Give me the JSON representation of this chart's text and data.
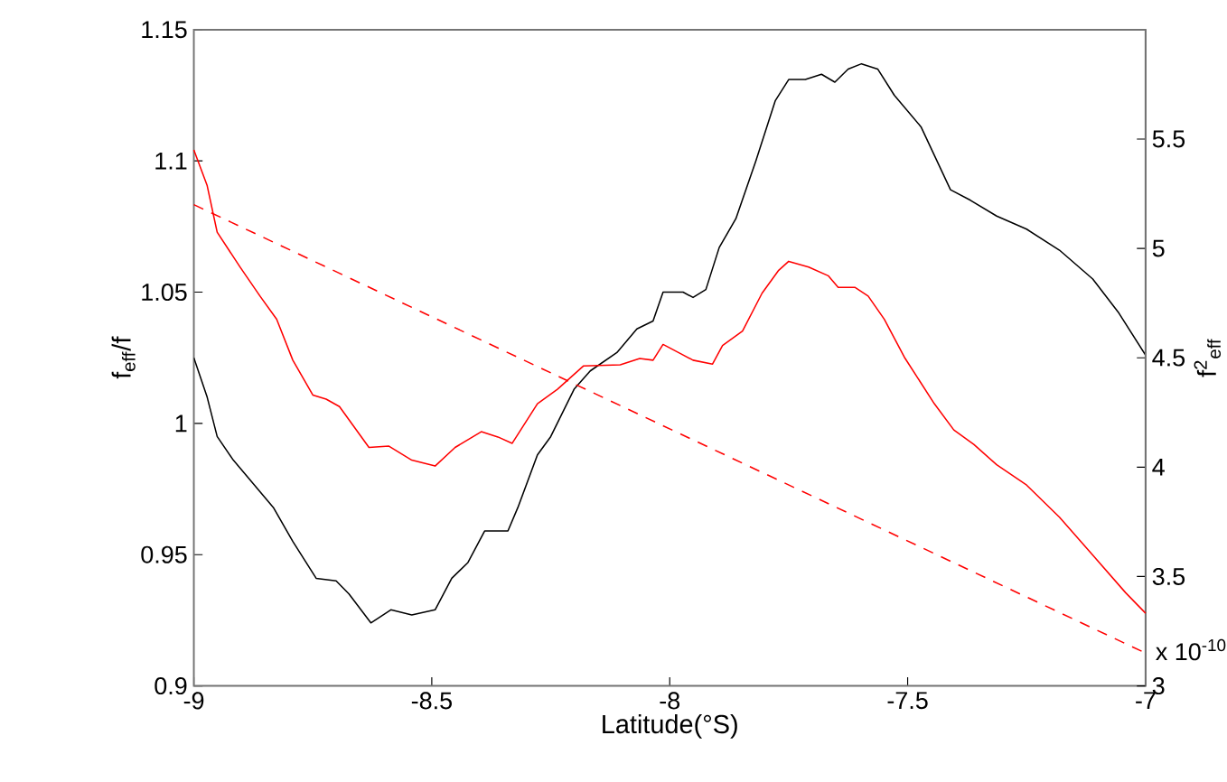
{
  "chart_data": {
    "type": "line",
    "xlabel": "Latitude(°S)",
    "ylabel": "f$_{eff}$/f",
    "y2label": "f$^{2}$$_{eff}$",
    "annotations": [
      "x 10$^{-10}$"
    ],
    "xlim": [
      -9,
      -7
    ],
    "xticks": [
      -9,
      -8.5,
      -8,
      -7.5,
      -7
    ],
    "ylim": [
      0.9,
      1.15
    ],
    "yticks": [
      0.9,
      0.95,
      1,
      1.05,
      1.1,
      1.15
    ],
    "y2lim": [
      3,
      6
    ],
    "y2ticks": [
      3,
      3.5,
      4,
      4.5,
      5,
      5.5
    ],
    "grid": false,
    "marker": "none",
    "series": [
      {
        "color": "#000000",
        "line_style": "solid",
        "x": [
          -9,
          -8.972,
          -8.951,
          -8.917,
          -8.833,
          -8.792,
          -8.743,
          -8.701,
          -8.674,
          -8.628,
          -8.586,
          -8.542,
          -8.493,
          -8.458,
          -8.424,
          -8.389,
          -8.34,
          -8.319,
          -8.278,
          -8.25,
          -8.201,
          -8.167,
          -8.111,
          -8.069,
          -8.035,
          -8.014,
          -7.972,
          -7.951,
          -7.924,
          -7.896,
          -7.861,
          -7.819,
          -7.778,
          -7.75,
          -7.715,
          -7.681,
          -7.653,
          -7.625,
          -7.597,
          -7.563,
          -7.528,
          -7.472,
          -7.41,
          -7.368,
          -7.313,
          -7.25,
          -7.181,
          -7.111,
          -7.056,
          -7
        ],
        "values": [
          1.025,
          1.01,
          0.995,
          0.986,
          0.968,
          0.955,
          0.941,
          0.94,
          0.935,
          0.924,
          0.929,
          0.927,
          0.929,
          0.941,
          0.947,
          0.959,
          0.959,
          0.968,
          0.988,
          0.995,
          1.013,
          1.02,
          1.027,
          1.036,
          1.039,
          1.05,
          1.05,
          1.048,
          1.051,
          1.067,
          1.078,
          1.1,
          1.123,
          1.131,
          1.131,
          1.133,
          1.13,
          1.135,
          1.137,
          1.135,
          1.125,
          1.113,
          1.089,
          1.085,
          1.079,
          1.074,
          1.066,
          1.055,
          1.042,
          1.026
        ]
      },
      {
        "color": "#ff0000",
        "line_style": "solid",
        "axis": "y2",
        "x": [
          -9,
          -8.972,
          -8.951,
          -8.903,
          -8.861,
          -8.826,
          -8.792,
          -8.75,
          -8.722,
          -8.694,
          -8.632,
          -8.59,
          -8.542,
          -8.493,
          -8.451,
          -8.396,
          -8.361,
          -8.331,
          -8.278,
          -8.236,
          -8.181,
          -8.104,
          -8.063,
          -8.035,
          -8.014,
          -7.979,
          -7.951,
          -7.91,
          -7.889,
          -7.847,
          -7.806,
          -7.771,
          -7.75,
          -7.708,
          -7.667,
          -7.646,
          -7.611,
          -7.583,
          -7.549,
          -7.507,
          -7.444,
          -7.403,
          -7.361,
          -7.313,
          -7.25,
          -7.181,
          -7.111,
          -7.042,
          -7
        ],
        "values": [
          5.45,
          5.287,
          5.074,
          4.915,
          4.782,
          4.676,
          4.489,
          4.33,
          4.311,
          4.277,
          4.09,
          4.096,
          4.032,
          4.005,
          4.09,
          4.162,
          4.138,
          4.109,
          4.29,
          4.356,
          4.463,
          4.468,
          4.497,
          4.489,
          4.561,
          4.521,
          4.489,
          4.471,
          4.556,
          4.622,
          4.795,
          4.9,
          4.941,
          4.915,
          4.875,
          4.822,
          4.822,
          4.782,
          4.676,
          4.503,
          4.29,
          4.17,
          4.104,
          4.011,
          3.918,
          3.771,
          3.598,
          3.426,
          3.332
        ]
      },
      {
        "color": "#ff0000",
        "line_style": "dashed",
        "axis": "y2",
        "x": [
          -9,
          -7
        ],
        "values": [
          5.2,
          3.15
        ]
      }
    ]
  }
}
